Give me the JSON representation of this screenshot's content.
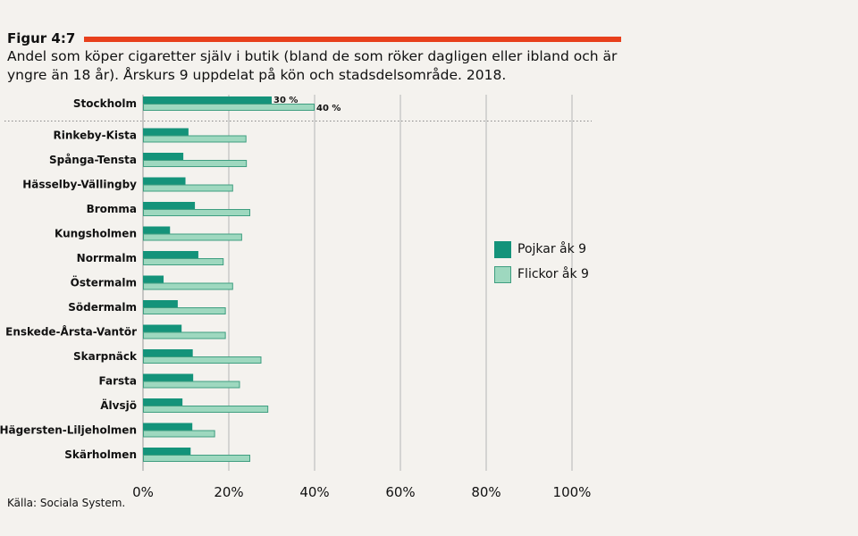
{
  "figure": {
    "label": "Figur 4:7",
    "title": "Andel som köper cigaretter själv i butik (bland de som röker dagligen eller ibland och är yngre än 18 år). Årskurs 9 uppdelat på kön och stadsdelsområde. 2018.",
    "source": "Källa: Sociala System."
  },
  "colors": {
    "accent": "#e8401c",
    "pojkar": "#14937a",
    "flickor": "#9ed8bf",
    "flickor_border": "#3f9e80",
    "grid": "#aaaaaa"
  },
  "chart_data": {
    "type": "bar",
    "orientation": "horizontal",
    "title": "Andel som köper cigaretter själv i butik (bland de som röker dagligen eller ibland och är yngre än 18 år). Årskurs 9 uppdelat på kön och stadsdelsområde. 2018.",
    "xlabel": "",
    "ylabel": "",
    "xlim": [
      0,
      100
    ],
    "x_ticks": [
      "0%",
      "20%",
      "40%",
      "60%",
      "80%",
      "100%"
    ],
    "x_tick_values": [
      0,
      20,
      40,
      60,
      80,
      100
    ],
    "grid": true,
    "legend_position": "right",
    "categories": [
      "Stockholm",
      "Rinkeby-Kista",
      "Spånga-Tensta",
      "Hässelby-Vällingby",
      "Bromma",
      "Kungsholmen",
      "Norrmalm",
      "Östermalm",
      "Södermalm",
      "Enskede-Årsta-Vantör",
      "Skarpnäck",
      "Farsta",
      "Älvsjö",
      "Hägersten-Liljeholmen",
      "Skärholmen"
    ],
    "series": [
      {
        "name": "Pojkar åk 9",
        "values": [
          30,
          10.6,
          9.4,
          9.9,
          12.1,
          6.3,
          12.9,
          4.8,
          8.1,
          9.0,
          11.6,
          11.7,
          9.2,
          11.5,
          11.1
        ]
      },
      {
        "name": "Flickor åk 9",
        "values": [
          40,
          24.1,
          24.2,
          21.0,
          25.0,
          23.1,
          18.8,
          21.0,
          19.3,
          19.3,
          27.6,
          22.6,
          29.2,
          16.8,
          25.0
        ]
      }
    ],
    "annotations": [
      {
        "category": "Stockholm",
        "series": "Pojkar åk 9",
        "text": "30 %"
      },
      {
        "category": "Stockholm",
        "series": "Flickor åk 9",
        "text": "40 %"
      }
    ]
  }
}
